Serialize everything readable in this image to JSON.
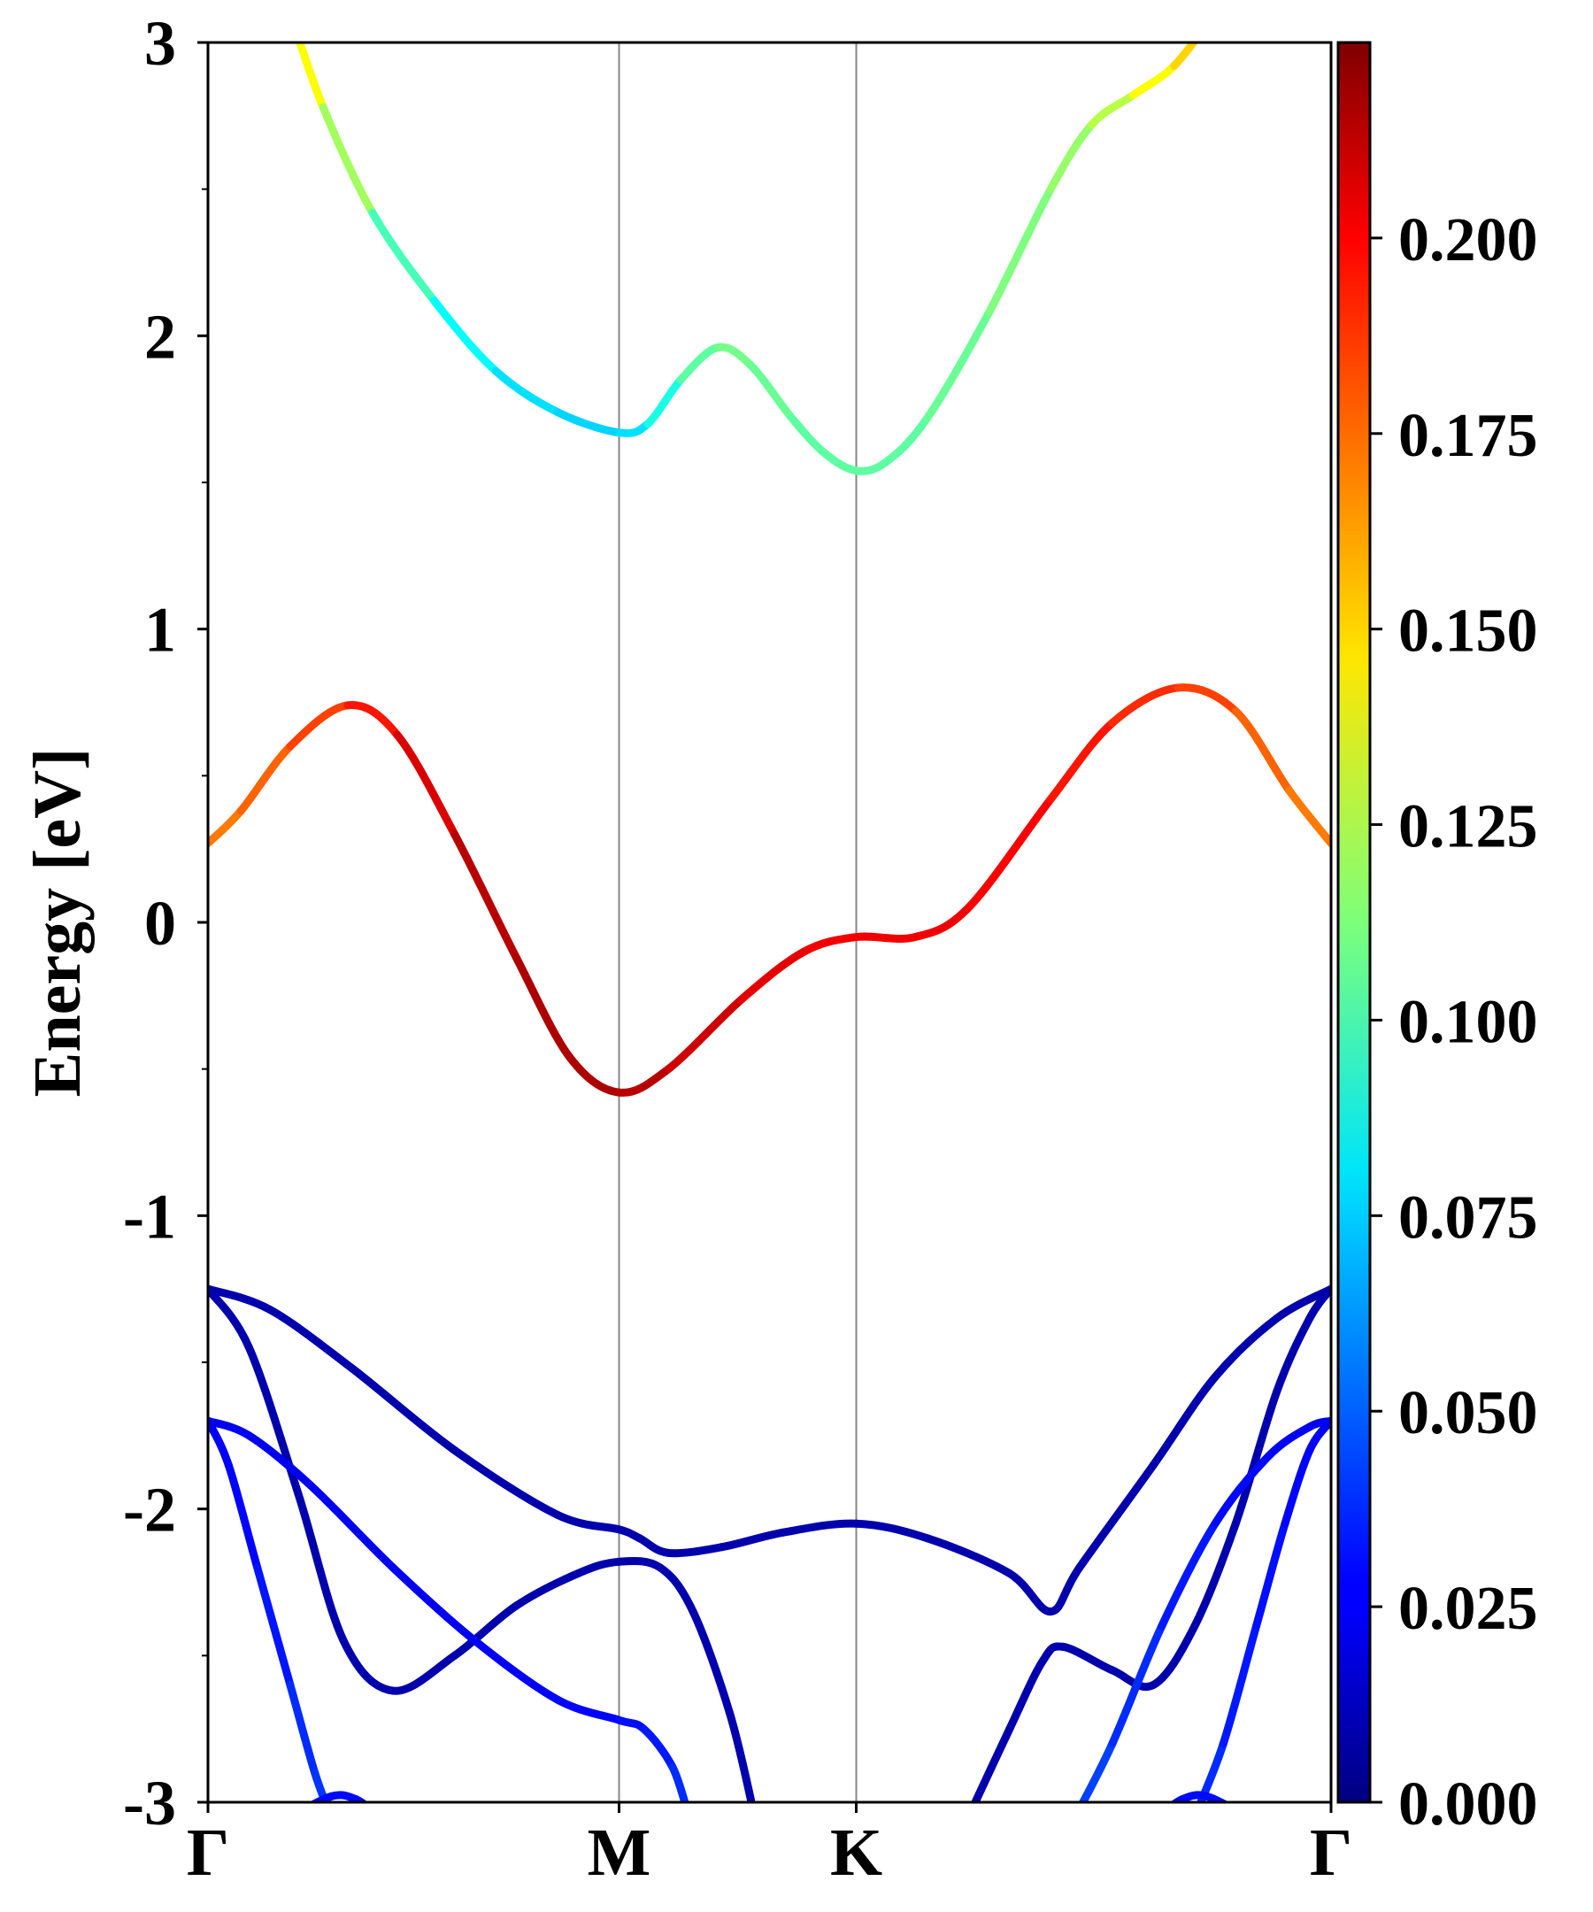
{
  "chart_data": {
    "type": "line",
    "title": "",
    "ylabel": "Energy [eV]",
    "xlabel": "",
    "ylim": [
      -3,
      3
    ],
    "yticks": [
      "3",
      "2",
      "1",
      "0",
      "-1",
      "-2",
      "-3"
    ],
    "ytick_values": [
      3,
      2,
      1,
      0,
      -1,
      -2,
      -3
    ],
    "xticks": [
      {
        "label": "Γ",
        "k": 0.0
      },
      {
        "label": "M",
        "k": 1.0
      },
      {
        "label": "K",
        "k": 1.577
      },
      {
        "label": "Γ",
        "k": 2.732
      }
    ],
    "colorbar": {
      "cmap": "jet",
      "range": [
        0.0,
        0.225
      ],
      "ticks": [
        "0.000",
        "0.025",
        "0.050",
        "0.075",
        "0.100",
        "0.125",
        "0.150",
        "0.175",
        "0.200"
      ],
      "tick_values": [
        0.0,
        0.025,
        0.05,
        0.075,
        0.1,
        0.125,
        0.15,
        0.175,
        0.2
      ]
    },
    "series": [
      {
        "points": [
          [
            0.2,
            3.1
          ],
          [
            0.28,
            2.78
          ],
          [
            0.4,
            2.42
          ],
          [
            0.55,
            2.12
          ],
          [
            0.7,
            1.88
          ],
          [
            0.85,
            1.74
          ],
          [
            1.0,
            1.67
          ],
          [
            1.07,
            1.7
          ],
          [
            1.15,
            1.85
          ],
          [
            1.24,
            1.96
          ],
          [
            1.32,
            1.9
          ],
          [
            1.42,
            1.72
          ],
          [
            1.5,
            1.6
          ],
          [
            1.577,
            1.54
          ],
          [
            1.65,
            1.57
          ],
          [
            1.75,
            1.72
          ],
          [
            1.9,
            2.08
          ],
          [
            2.05,
            2.5
          ],
          [
            2.15,
            2.72
          ],
          [
            2.25,
            2.82
          ],
          [
            2.35,
            2.92
          ],
          [
            2.45,
            3.1
          ]
        ],
        "colors": [
          0.15,
          0.13,
          0.11,
          0.09,
          0.08,
          0.075,
          0.075,
          0.08,
          0.1,
          0.11,
          0.11,
          0.105,
          0.105,
          0.105,
          0.105,
          0.105,
          0.11,
          0.115,
          0.12,
          0.13,
          0.15,
          0.15
        ]
      },
      {
        "points": [
          [
            0.0,
            0.27
          ],
          [
            0.08,
            0.38
          ],
          [
            0.2,
            0.6
          ],
          [
            0.34,
            0.74
          ],
          [
            0.46,
            0.64
          ],
          [
            0.6,
            0.3
          ],
          [
            0.75,
            -0.12
          ],
          [
            0.88,
            -0.46
          ],
          [
            1.0,
            -0.58
          ],
          [
            1.12,
            -0.5
          ],
          [
            1.3,
            -0.26
          ],
          [
            1.45,
            -0.1
          ],
          [
            1.577,
            -0.05
          ],
          [
            1.72,
            -0.05
          ],
          [
            1.85,
            0.05
          ],
          [
            2.05,
            0.42
          ],
          [
            2.2,
            0.68
          ],
          [
            2.36,
            0.8
          ],
          [
            2.5,
            0.72
          ],
          [
            2.63,
            0.45
          ],
          [
            2.732,
            0.27
          ]
        ],
        "colors": [
          0.17,
          0.17,
          0.18,
          0.185,
          0.2,
          0.21,
          0.215,
          0.215,
          0.215,
          0.21,
          0.205,
          0.2,
          0.2,
          0.2,
          0.2,
          0.195,
          0.19,
          0.185,
          0.18,
          0.17,
          0.17
        ]
      },
      {
        "points": [
          [
            0.0,
            -1.25
          ],
          [
            0.15,
            -1.32
          ],
          [
            0.35,
            -1.52
          ],
          [
            0.6,
            -1.8
          ],
          [
            0.85,
            -2.02
          ],
          [
            1.0,
            -2.07
          ],
          [
            1.05,
            -2.1
          ],
          [
            1.12,
            -2.15
          ],
          [
            1.25,
            -2.13
          ],
          [
            1.4,
            -2.08
          ],
          [
            1.577,
            -2.05
          ],
          [
            1.75,
            -2.1
          ],
          [
            1.95,
            -2.22
          ],
          [
            2.05,
            -2.35
          ],
          [
            2.12,
            -2.2
          ],
          [
            2.3,
            -1.85
          ],
          [
            2.45,
            -1.55
          ],
          [
            2.6,
            -1.35
          ],
          [
            2.732,
            -1.25
          ]
        ],
        "colors": [
          0.01,
          0.01,
          0.01,
          0.01,
          0.01,
          0.01,
          0.01,
          0.01,
          0.01,
          0.01,
          0.01,
          0.01,
          0.01,
          0.01,
          0.01,
          0.01,
          0.01,
          0.01,
          0.01
        ]
      },
      {
        "points": [
          [
            0.0,
            -1.25
          ],
          [
            0.1,
            -1.45
          ],
          [
            0.22,
            -1.95
          ],
          [
            0.33,
            -2.45
          ],
          [
            0.45,
            -2.62
          ],
          [
            0.6,
            -2.5
          ],
          [
            0.75,
            -2.33
          ],
          [
            0.9,
            -2.22
          ],
          [
            1.0,
            -2.18
          ],
          [
            1.1,
            -2.2
          ],
          [
            1.18,
            -2.35
          ],
          [
            1.27,
            -2.7
          ],
          [
            1.33,
            -3.05
          ]
        ],
        "colors": [
          0.01,
          0.01,
          0.01,
          0.01,
          0.01,
          0.01,
          0.01,
          0.01,
          0.01,
          0.01,
          0.01,
          0.01,
          0.01
        ]
      },
      {
        "points": [
          [
            1.85,
            -3.05
          ],
          [
            1.95,
            -2.75
          ],
          [
            2.03,
            -2.52
          ],
          [
            2.08,
            -2.47
          ],
          [
            2.2,
            -2.55
          ],
          [
            2.3,
            -2.6
          ],
          [
            2.4,
            -2.4
          ],
          [
            2.5,
            -2.05
          ],
          [
            2.6,
            -1.6
          ],
          [
            2.68,
            -1.35
          ],
          [
            2.732,
            -1.25
          ]
        ],
        "colors": [
          0.01,
          0.01,
          0.01,
          0.01,
          0.01,
          0.01,
          0.01,
          0.01,
          0.01,
          0.01,
          0.01
        ]
      },
      {
        "points": [
          [
            0.0,
            -1.7
          ],
          [
            0.1,
            -1.75
          ],
          [
            0.25,
            -1.92
          ],
          [
            0.45,
            -2.2
          ],
          [
            0.65,
            -2.45
          ],
          [
            0.85,
            -2.65
          ],
          [
            1.0,
            -2.72
          ],
          [
            1.06,
            -2.75
          ],
          [
            1.13,
            -2.88
          ],
          [
            1.17,
            -3.05
          ]
        ],
        "colors": [
          0.025,
          0.025,
          0.025,
          0.025,
          0.025,
          0.028,
          0.03,
          0.032,
          0.035,
          0.04
        ]
      },
      {
        "points": [
          [
            0.0,
            -1.7
          ],
          [
            0.05,
            -1.85
          ],
          [
            0.12,
            -2.2
          ],
          [
            0.2,
            -2.6
          ],
          [
            0.26,
            -2.9
          ],
          [
            0.3,
            -3.05
          ]
        ],
        "colors": [
          0.025,
          0.028,
          0.03,
          0.035,
          0.04,
          0.04
        ]
      },
      {
        "points": [
          [
            2.11,
            -3.05
          ],
          [
            2.2,
            -2.8
          ],
          [
            2.32,
            -2.4
          ],
          [
            2.45,
            -2.05
          ],
          [
            2.58,
            -1.82
          ],
          [
            2.68,
            -1.72
          ],
          [
            2.732,
            -1.7
          ]
        ],
        "colors": [
          0.045,
          0.04,
          0.035,
          0.032,
          0.028,
          0.025,
          0.025
        ]
      },
      {
        "points": [
          [
            2.4,
            -3.05
          ],
          [
            2.47,
            -2.8
          ],
          [
            2.55,
            -2.4
          ],
          [
            2.62,
            -2.05
          ],
          [
            2.68,
            -1.8
          ],
          [
            2.732,
            -1.7
          ]
        ],
        "colors": [
          0.04,
          0.035,
          0.032,
          0.03,
          0.028,
          0.025
        ]
      },
      {
        "points": [
          [
            0.2,
            -3.05
          ],
          [
            0.3,
            -2.98
          ],
          [
            0.36,
            -2.99
          ],
          [
            0.42,
            -3.05
          ]
        ],
        "colors": [
          0.03,
          0.03,
          0.03,
          0.03
        ]
      },
      {
        "points": [
          [
            2.31,
            -3.05
          ],
          [
            2.37,
            -2.99
          ],
          [
            2.43,
            -2.98
          ],
          [
            2.53,
            -3.05
          ]
        ],
        "colors": [
          0.03,
          0.03,
          0.03,
          0.03
        ]
      }
    ]
  }
}
